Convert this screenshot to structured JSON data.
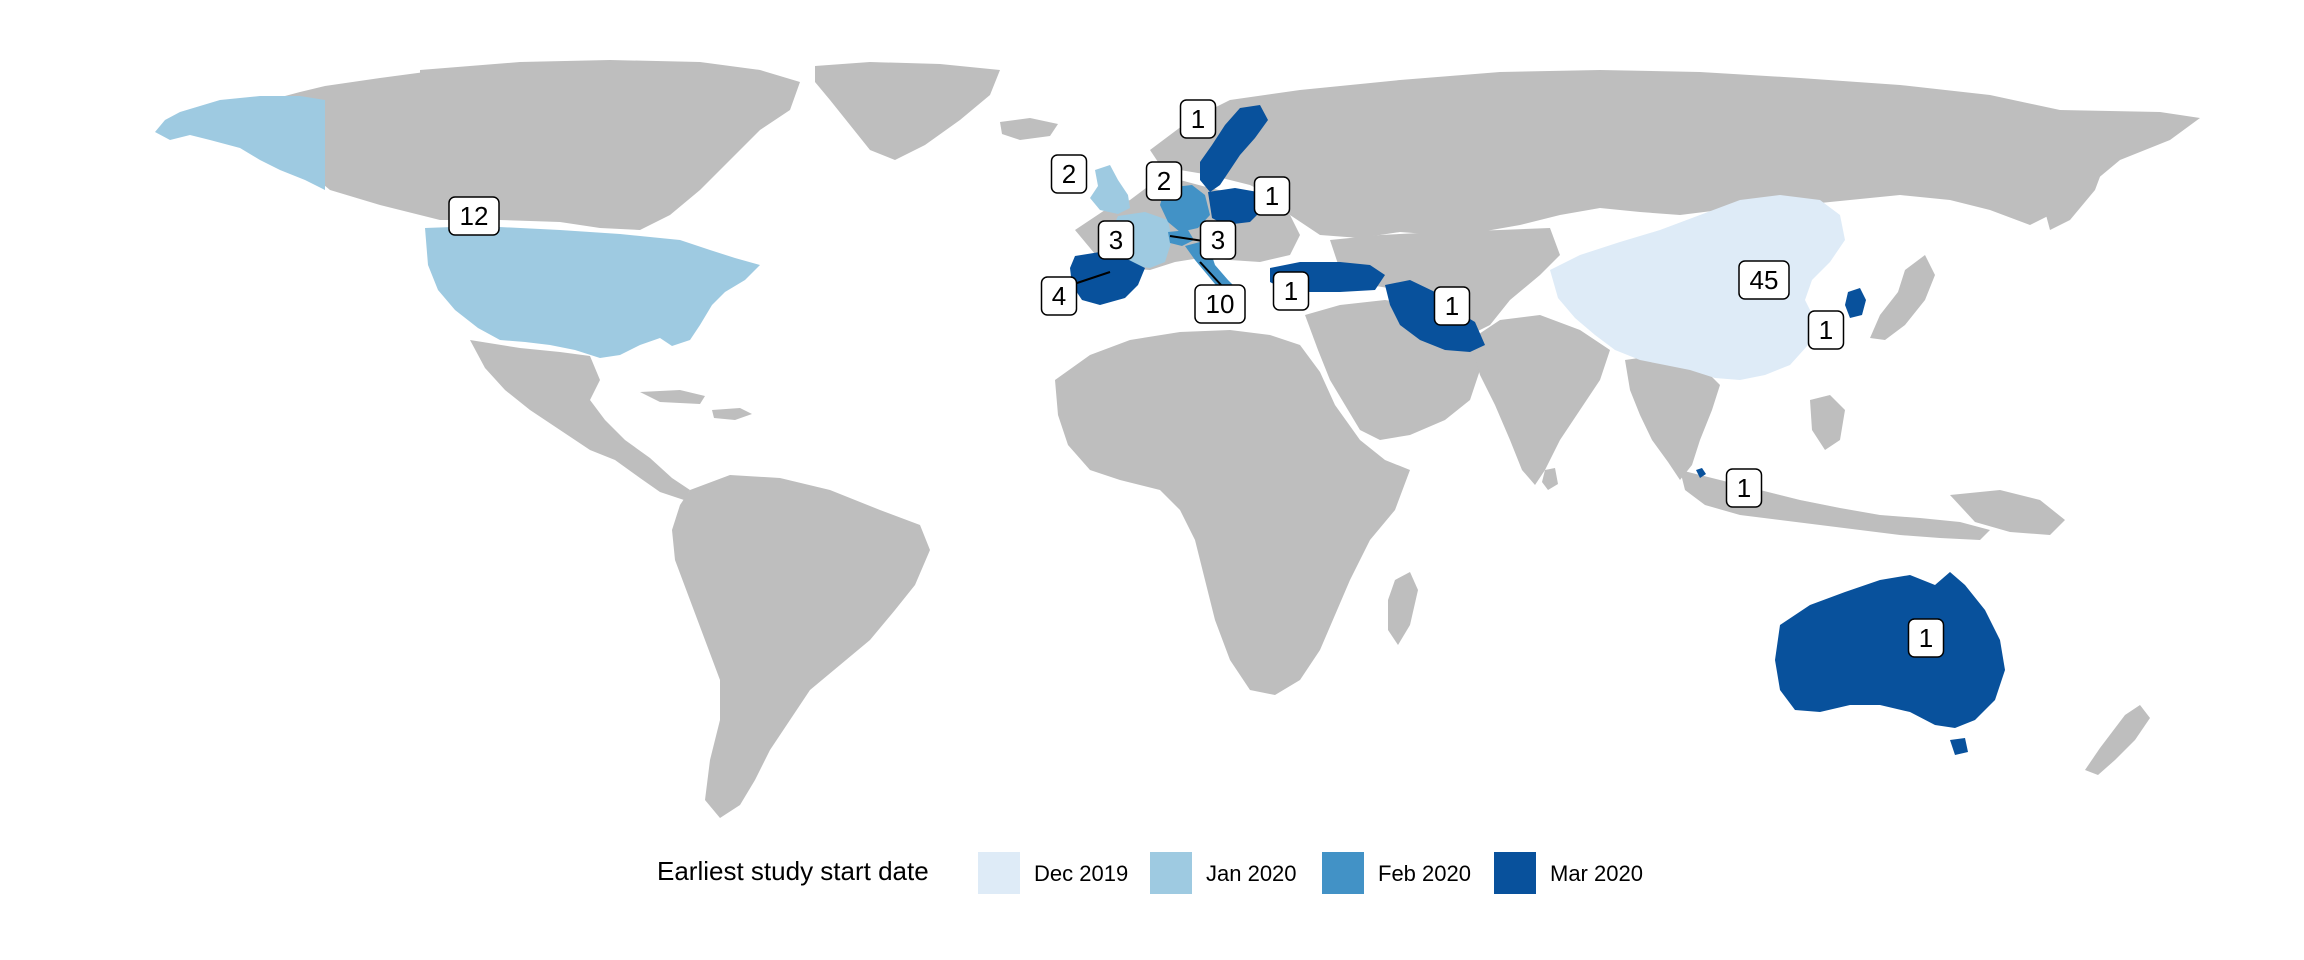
{
  "legend": {
    "title": "Earliest study start date",
    "items": [
      {
        "key": "dec2019",
        "label": "Dec 2019",
        "color": "#DEEBF7"
      },
      {
        "key": "jan2020",
        "label": "Jan 2020",
        "color": "#9ECAE1"
      },
      {
        "key": "feb2020",
        "label": "Feb 2020",
        "color": "#4292C6"
      },
      {
        "key": "mar2020",
        "label": "Mar 2020",
        "color": "#08519C"
      }
    ]
  },
  "colors": {
    "background": "#FFFFFF",
    "land_no_data": "#BEBEBE",
    "label_border": "#000000",
    "label_fill": "#FFFFFF"
  },
  "countries": [
    {
      "id": "usa",
      "name": "United States",
      "category": "jan2020",
      "studies": "12"
    },
    {
      "id": "uk",
      "name": "United Kingdom",
      "category": "jan2020",
      "studies": "2"
    },
    {
      "id": "sweden",
      "name": "Sweden",
      "category": "mar2020",
      "studies": "1"
    },
    {
      "id": "germany",
      "name": "Germany",
      "category": "feb2020",
      "studies": "2"
    },
    {
      "id": "poland",
      "name": "Poland",
      "category": "mar2020",
      "studies": "1"
    },
    {
      "id": "france",
      "name": "France",
      "category": "jan2020",
      "studies": "3"
    },
    {
      "id": "switzerland",
      "name": "Switzerland",
      "category": "feb2020",
      "studies": "3"
    },
    {
      "id": "spain",
      "name": "Spain",
      "category": "mar2020",
      "studies": "4"
    },
    {
      "id": "italy",
      "name": "Italy",
      "category": "feb2020",
      "studies": "10"
    },
    {
      "id": "turkey",
      "name": "Turkey",
      "category": "mar2020",
      "studies": "1"
    },
    {
      "id": "iran",
      "name": "Iran",
      "category": "mar2020",
      "studies": "1"
    },
    {
      "id": "china",
      "name": "China",
      "category": "dec2019",
      "studies": "45"
    },
    {
      "id": "south-korea",
      "name": "South Korea",
      "category": "mar2020",
      "studies": "1"
    },
    {
      "id": "singapore",
      "name": "Singapore",
      "category": "mar2020",
      "studies": "1"
    },
    {
      "id": "australia",
      "name": "Australia",
      "category": "mar2020",
      "studies": "1"
    }
  ]
}
